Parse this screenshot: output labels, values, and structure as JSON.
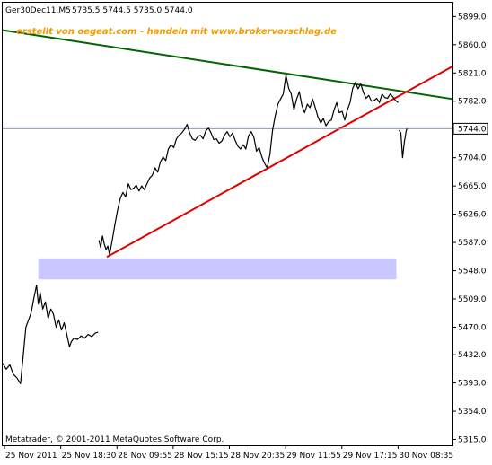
{
  "chart_data": {
    "type": "line",
    "header": {
      "symbol": "Ger30Dec11,M5",
      "ohlc": "5735.5 5744.5 5735.0 5744.0"
    },
    "watermark": "erstellt von oegeat.com - handeln mit www.brokervorschlag.de",
    "footer": "Metatrader, © 2001-2011 MetaQuotes Software Corp.",
    "ylim": [
      5307,
      5918
    ],
    "y_ticks": [
      5899.0,
      5860.0,
      5821.0,
      5782.0,
      5744.0,
      5704.0,
      5665.0,
      5626.0,
      5587.0,
      5548.0,
      5509.0,
      5470.0,
      5432.0,
      5393.0,
      5354.0,
      5315.0
    ],
    "hidden_y_ticks": [
      5744.0
    ],
    "current_price": 5744.0,
    "x_labels": [
      "25 Nov 2011",
      "25 Nov 18:30",
      "28 Nov 09:55",
      "28 Nov 15:15",
      "28 Nov 20:35",
      "29 Nov 11:55",
      "29 Nov 17:15",
      "30 Nov 08:35"
    ],
    "bars_total": 505,
    "series": [
      {
        "style": "close-line",
        "color": "#000000",
        "segments": [
          [
            [
              0,
              5420
            ],
            [
              4,
              5412
            ],
            [
              8,
              5418
            ],
            [
              12,
              5405
            ],
            [
              16,
              5400
            ],
            [
              20,
              5392
            ],
            [
              23,
              5430
            ],
            [
              26,
              5470
            ],
            [
              29,
              5480
            ],
            [
              32,
              5490
            ],
            [
              35,
              5510
            ],
            [
              38,
              5528
            ],
            [
              40,
              5502
            ],
            [
              42,
              5518
            ],
            [
              45,
              5495
            ],
            [
              48,
              5505
            ],
            [
              51,
              5482
            ],
            [
              54,
              5495
            ],
            [
              57,
              5488
            ],
            [
              60,
              5470
            ],
            [
              63,
              5480
            ],
            [
              66,
              5466
            ],
            [
              69,
              5476
            ],
            [
              72,
              5460
            ],
            [
              75,
              5443
            ],
            [
              77,
              5450
            ],
            [
              80,
              5455
            ],
            [
              84,
              5453
            ],
            [
              88,
              5458
            ],
            [
              92,
              5455
            ],
            [
              96,
              5460
            ],
            [
              100,
              5457
            ],
            [
              104,
              5462
            ],
            [
              107,
              5463
            ]
          ],
          [
            [
              108,
              5590
            ],
            [
              110,
              5580
            ],
            [
              112,
              5596
            ],
            [
              114,
              5585
            ],
            [
              116,
              5577
            ],
            [
              118,
              5582
            ],
            [
              120,
              5570
            ],
            [
              123,
              5590
            ],
            [
              126,
              5612
            ],
            [
              129,
              5632
            ],
            [
              132,
              5648
            ],
            [
              135,
              5656
            ],
            [
              138,
              5650
            ],
            [
              141,
              5668
            ],
            [
              144,
              5660
            ],
            [
              147,
              5662
            ],
            [
              150,
              5666
            ],
            [
              153,
              5658
            ],
            [
              156,
              5665
            ],
            [
              159,
              5660
            ],
            [
              162,
              5668
            ],
            [
              165,
              5676
            ],
            [
              168,
              5680
            ],
            [
              171,
              5690
            ],
            [
              174,
              5684
            ],
            [
              177,
              5698
            ],
            [
              180,
              5705
            ],
            [
              183,
              5700
            ],
            [
              186,
              5716
            ],
            [
              189,
              5722
            ],
            [
              192,
              5718
            ],
            [
              195,
              5730
            ],
            [
              198,
              5735
            ],
            [
              201,
              5738
            ],
            [
              204,
              5743
            ],
            [
              207,
              5750
            ],
            [
              210,
              5738
            ],
            [
              213,
              5730
            ],
            [
              216,
              5728
            ],
            [
              219,
              5733
            ],
            [
              222,
              5735
            ],
            [
              225,
              5730
            ],
            [
              228,
              5741
            ],
            [
              231,
              5745
            ],
            [
              234,
              5738
            ],
            [
              237,
              5729
            ],
            [
              240,
              5730
            ],
            [
              243,
              5724
            ],
            [
              246,
              5727
            ],
            [
              249,
              5735
            ],
            [
              252,
              5740
            ],
            [
              255,
              5733
            ],
            [
              258,
              5738
            ],
            [
              261,
              5728
            ],
            [
              264,
              5720
            ],
            [
              267,
              5716
            ],
            [
              270,
              5722
            ],
            [
              273,
              5716
            ],
            [
              276,
              5734
            ],
            [
              279,
              5740
            ],
            [
              282,
              5732
            ],
            [
              285,
              5713
            ],
            [
              288,
              5718
            ],
            [
              291,
              5705
            ],
            [
              294,
              5696
            ],
            [
              297,
              5690
            ],
            [
              300,
              5708
            ],
            [
              303,
              5742
            ],
            [
              306,
              5762
            ],
            [
              309,
              5778
            ],
            [
              312,
              5785
            ],
            [
              315,
              5792
            ],
            [
              318,
              5818
            ],
            [
              321,
              5800
            ],
            [
              324,
              5792
            ],
            [
              327,
              5770
            ],
            [
              330,
              5785
            ],
            [
              333,
              5795
            ],
            [
              336,
              5776
            ],
            [
              339,
              5766
            ],
            [
              342,
              5778
            ],
            [
              345,
              5773
            ],
            [
              348,
              5785
            ],
            [
              351,
              5773
            ],
            [
              354,
              5760
            ],
            [
              357,
              5752
            ],
            [
              360,
              5758
            ],
            [
              363,
              5748
            ],
            [
              366,
              5754
            ],
            [
              369,
              5756
            ],
            [
              372,
              5770
            ],
            [
              375,
              5780
            ],
            [
              378,
              5766
            ],
            [
              381,
              5768
            ],
            [
              384,
              5756
            ],
            [
              387,
              5770
            ],
            [
              390,
              5780
            ],
            [
              393,
              5800
            ],
            [
              396,
              5808
            ],
            [
              399,
              5799
            ],
            [
              402,
              5806
            ],
            [
              405,
              5794
            ],
            [
              408,
              5786
            ],
            [
              411,
              5790
            ],
            [
              414,
              5782
            ],
            [
              417,
              5783
            ],
            [
              420,
              5786
            ],
            [
              423,
              5780
            ],
            [
              426,
              5792
            ],
            [
              429,
              5787
            ],
            [
              432,
              5786
            ],
            [
              435,
              5792
            ],
            [
              438,
              5788
            ],
            [
              441,
              5783
            ],
            [
              444,
              5780
            ]
          ],
          [
            [
              445,
              5742
            ],
            [
              447,
              5738
            ],
            [
              448,
              5720
            ],
            [
              449,
              5704
            ],
            [
              450,
              5715
            ],
            [
              451,
              5726
            ],
            [
              452,
              5733
            ],
            [
              453,
              5741
            ],
            [
              454,
              5744
            ]
          ]
        ]
      }
    ],
    "trendlines": [
      {
        "name": "descending-resistance",
        "color": "#006400",
        "from": [
          0,
          5880
        ],
        "to": [
          505,
          5785
        ]
      },
      {
        "name": "ascending-support",
        "color": "#e00000",
        "from": [
          117,
          5567
        ],
        "to": [
          505,
          5830
        ]
      }
    ],
    "zones": [
      {
        "name": "demand-zone",
        "color": "#c8c8ff",
        "x_from": 40,
        "x_to": 442,
        "y_from": 5536,
        "y_to": 5565
      }
    ],
    "grid": false,
    "legend": "none"
  }
}
